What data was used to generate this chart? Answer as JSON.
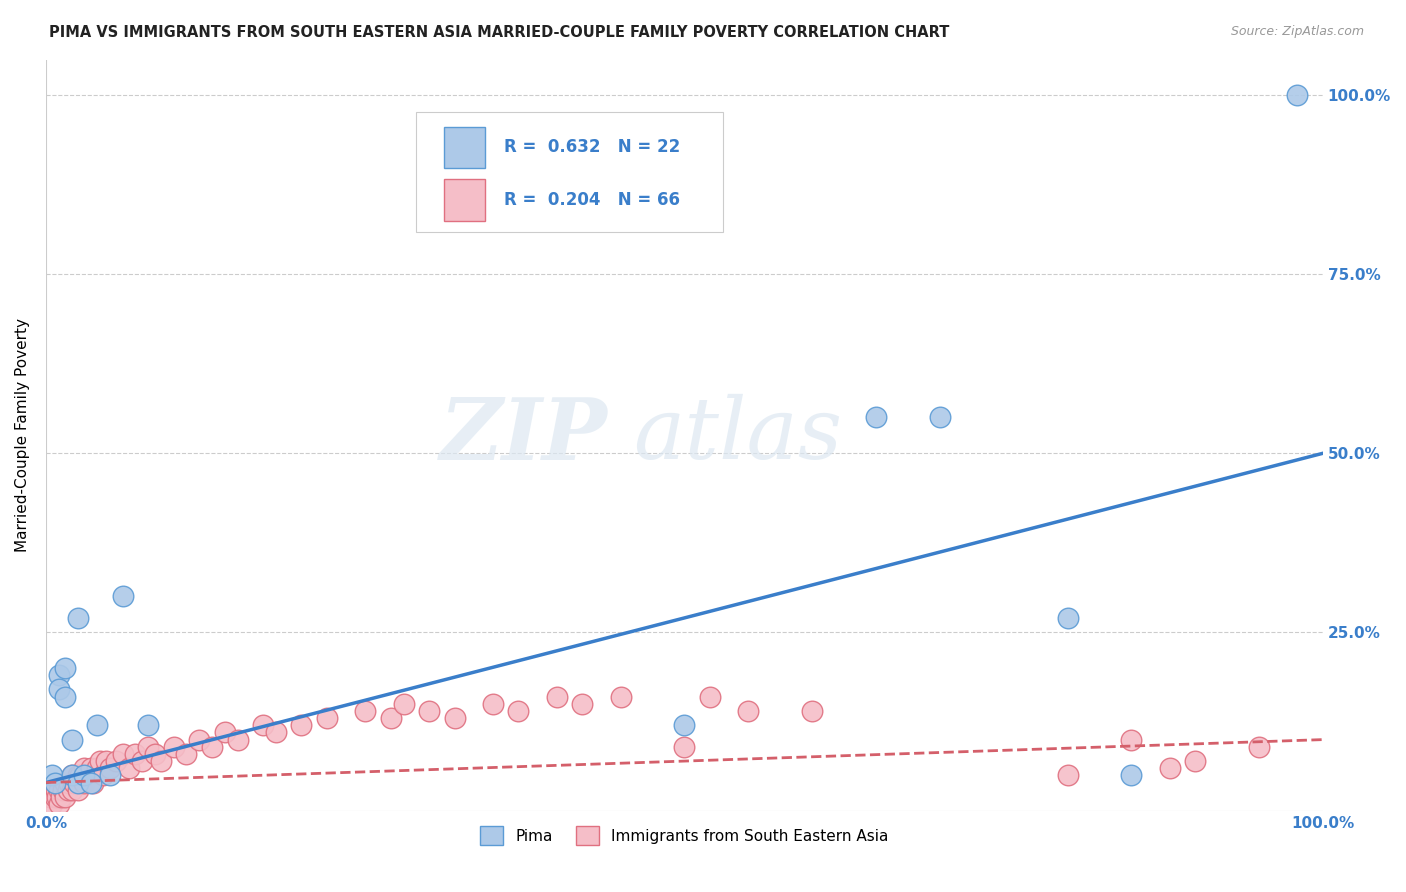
{
  "title": "PIMA VS IMMIGRANTS FROM SOUTH EASTERN ASIA MARRIED-COUPLE FAMILY POVERTY CORRELATION CHART",
  "source": "Source: ZipAtlas.com",
  "ylabel": "Married-Couple Family Poverty",
  "xlim": [
    0,
    1
  ],
  "ylim": [
    0,
    1.05
  ],
  "background_color": "#ffffff",
  "watermark_line1": "ZIP",
  "watermark_line2": "atlas",
  "pima_color": "#adc9e8",
  "pima_edge_color": "#5b9bd5",
  "sea_color": "#f5bec8",
  "sea_edge_color": "#e07080",
  "pima_R": 0.632,
  "pima_N": 22,
  "sea_R": 0.204,
  "sea_N": 66,
  "pima_line_color": "#3a7eca",
  "sea_line_color": "#d45f6a",
  "pima_line_start_y": 0.04,
  "pima_line_end_y": 0.5,
  "sea_line_start_y": 0.04,
  "sea_line_end_y": 0.1,
  "pima_x": [
    0.005,
    0.007,
    0.01,
    0.01,
    0.015,
    0.015,
    0.02,
    0.02,
    0.025,
    0.025,
    0.03,
    0.035,
    0.04,
    0.05,
    0.06,
    0.08,
    0.5,
    0.65,
    0.7,
    0.8,
    0.85,
    0.98
  ],
  "pima_y": [
    0.05,
    0.04,
    0.19,
    0.17,
    0.2,
    0.16,
    0.05,
    0.1,
    0.04,
    0.27,
    0.05,
    0.04,
    0.12,
    0.05,
    0.3,
    0.12,
    0.12,
    0.55,
    0.55,
    0.27,
    0.05,
    1.0
  ],
  "sea_x": [
    0.003,
    0.005,
    0.007,
    0.008,
    0.009,
    0.01,
    0.01,
    0.012,
    0.013,
    0.015,
    0.015,
    0.017,
    0.018,
    0.02,
    0.02,
    0.022,
    0.025,
    0.025,
    0.027,
    0.03,
    0.03,
    0.032,
    0.035,
    0.037,
    0.04,
    0.042,
    0.045,
    0.047,
    0.05,
    0.055,
    0.06,
    0.065,
    0.07,
    0.075,
    0.08,
    0.085,
    0.09,
    0.1,
    0.11,
    0.12,
    0.13,
    0.14,
    0.15,
    0.17,
    0.18,
    0.2,
    0.22,
    0.25,
    0.27,
    0.28,
    0.3,
    0.32,
    0.35,
    0.37,
    0.4,
    0.42,
    0.45,
    0.5,
    0.52,
    0.55,
    0.6,
    0.8,
    0.85,
    0.88,
    0.9,
    0.95
  ],
  "sea_y": [
    0.02,
    0.01,
    0.02,
    0.03,
    0.02,
    0.01,
    0.03,
    0.02,
    0.03,
    0.02,
    0.04,
    0.03,
    0.04,
    0.03,
    0.05,
    0.04,
    0.05,
    0.03,
    0.05,
    0.04,
    0.06,
    0.05,
    0.06,
    0.04,
    0.06,
    0.07,
    0.05,
    0.07,
    0.06,
    0.07,
    0.08,
    0.06,
    0.08,
    0.07,
    0.09,
    0.08,
    0.07,
    0.09,
    0.08,
    0.1,
    0.09,
    0.11,
    0.1,
    0.12,
    0.11,
    0.12,
    0.13,
    0.14,
    0.13,
    0.15,
    0.14,
    0.13,
    0.15,
    0.14,
    0.16,
    0.15,
    0.16,
    0.09,
    0.16,
    0.14,
    0.14,
    0.05,
    0.1,
    0.06,
    0.07,
    0.09
  ]
}
